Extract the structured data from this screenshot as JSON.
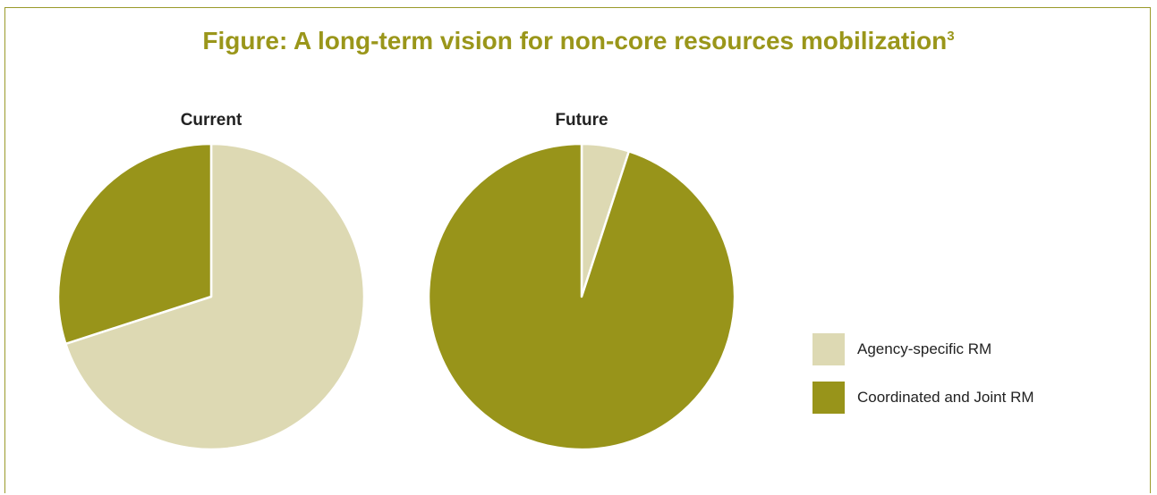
{
  "title": {
    "text": "Figure: A long-term vision for non-core resources mobilization",
    "superscript": "3"
  },
  "colors": {
    "accent": "#9a961a",
    "light": "#ddd9b3",
    "dark": "#98941a",
    "frame": "#9a9a2a"
  },
  "legend": [
    {
      "label": "Agency-specific RM",
      "color": "#ddd9b3"
    },
    {
      "label": "Coordinated and Joint RM",
      "color": "#98941a"
    }
  ],
  "chart_data": [
    {
      "type": "pie",
      "title": "Current",
      "labels": [
        "Agency-specific RM",
        "Coordinated and Joint RM"
      ],
      "values": [
        70,
        30
      ],
      "colors": [
        "#ddd9b3",
        "#98941a"
      ],
      "start": "12 o'clock",
      "direction": "clockwise",
      "legend_position": "right"
    },
    {
      "type": "pie",
      "title": "Future",
      "labels": [
        "Agency-specific RM",
        "Coordinated and Joint RM"
      ],
      "values": [
        5,
        95
      ],
      "colors": [
        "#ddd9b3",
        "#98941a"
      ],
      "start": "12 o'clock",
      "direction": "clockwise",
      "legend_position": "right"
    }
  ]
}
